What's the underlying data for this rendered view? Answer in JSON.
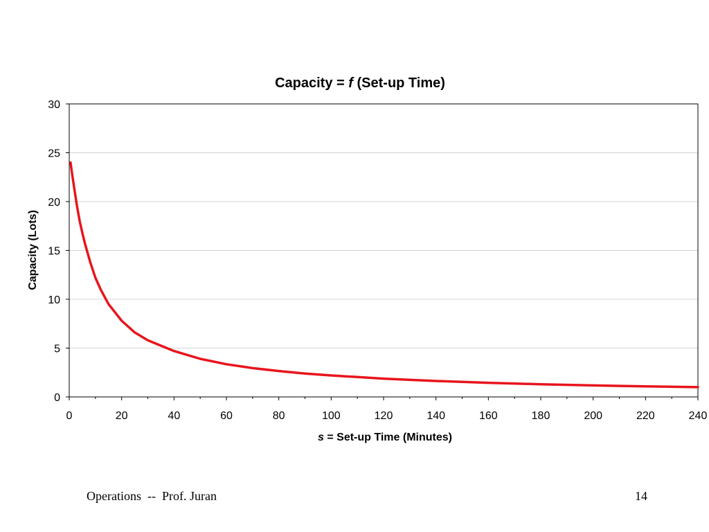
{
  "chart_data": {
    "type": "line",
    "title_prefix": "Capacity = ",
    "title_italic": "f",
    "title_suffix": " (Set-up Time)",
    "xlabel_italic": "s",
    "xlabel_suffix": " = Set-up Time (Minutes)",
    "ylabel": "Capacity (Lots)",
    "xlim": [
      0,
      240
    ],
    "ylim": [
      0,
      30
    ],
    "x_ticks": [
      0,
      20,
      40,
      60,
      80,
      100,
      120,
      140,
      160,
      180,
      200,
      220,
      240
    ],
    "y_ticks": [
      0,
      5,
      10,
      15,
      20,
      25,
      30
    ],
    "grid": "horizontal",
    "series": [
      {
        "name": "Capacity",
        "color": "#e8141c",
        "x": [
          0.5,
          1,
          2,
          3,
          4,
          5,
          6,
          8,
          10,
          12,
          15,
          20,
          25,
          30,
          40,
          50,
          60,
          70,
          80,
          90,
          100,
          120,
          140,
          160,
          180,
          200,
          220,
          240
        ],
        "y": [
          24.0,
          23.0,
          21.2,
          19.5,
          18.0,
          16.8,
          15.7,
          13.8,
          12.2,
          11.0,
          9.5,
          7.8,
          6.6,
          5.8,
          4.7,
          3.9,
          3.35,
          2.95,
          2.65,
          2.4,
          2.2,
          1.87,
          1.63,
          1.45,
          1.3,
          1.18,
          1.08,
          1.0
        ]
      }
    ]
  },
  "footer": {
    "left": "Operations  --  Prof. Juran",
    "page_number": "14"
  }
}
